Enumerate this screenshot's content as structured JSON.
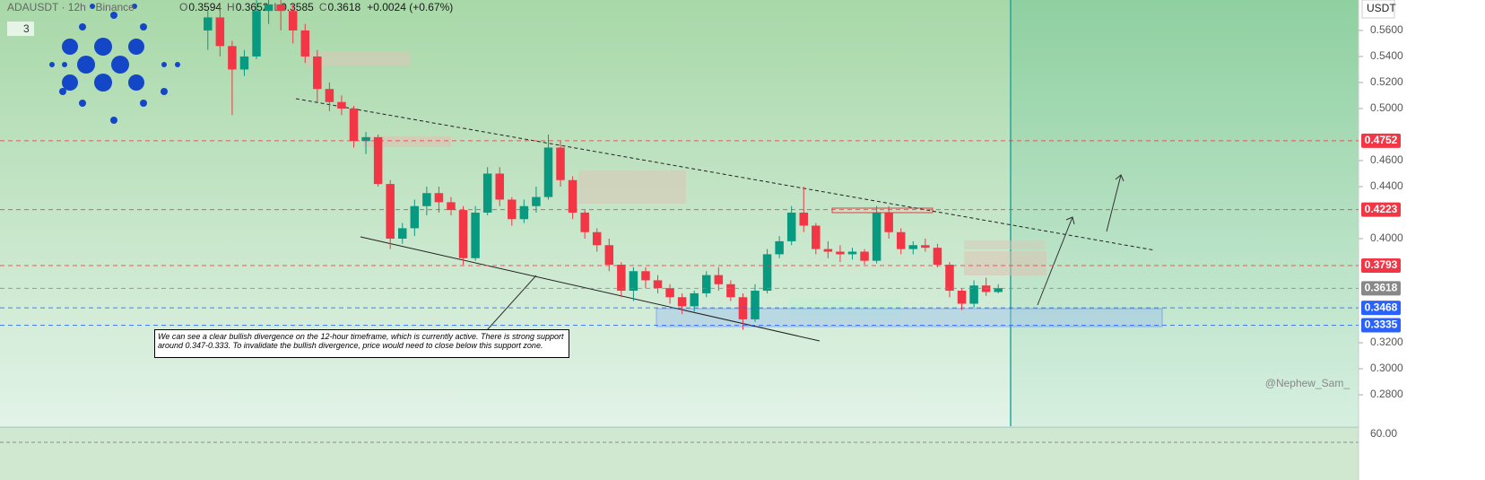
{
  "chart_data": {
    "type": "candlestick",
    "title": "ADAUSDT · 12h · Binance",
    "legend_values": [
      {
        "label": "O",
        "value": "0.3594"
      },
      {
        "label": "H",
        "value": "0.3652"
      },
      {
        "label": "L",
        "value": "0.3585"
      },
      {
        "label": "C",
        "value": "0.3618"
      },
      {
        "label": "",
        "value": "+0.0024 (+0.67%)"
      }
    ],
    "indicator_count": "3",
    "currency": "USDT",
    "annotation": "We can see a clear bullish divergence on the 12-hour timeframe, which is currently active. There is strong support around 0.347-0.333. To invalidate the bullish divergence, price would need to close below this support zone.",
    "watermark": "@Nephew_Sam_",
    "rsi_label": "60.00",
    "up_color": "#089981",
    "down_color": "#f23645",
    "ylim": [
      0.2559,
      0.5834
    ],
    "yticks": [
      {
        "value": 0.56,
        "label": "0.5600"
      },
      {
        "value": 0.54,
        "label": "0.5400"
      },
      {
        "value": 0.52,
        "label": "0.5200"
      },
      {
        "value": 0.5,
        "label": "0.5000"
      },
      {
        "value": 0.46,
        "label": "0.4600"
      },
      {
        "value": 0.44,
        "label": "0.4400"
      },
      {
        "value": 0.4,
        "label": "0.4000"
      },
      {
        "value": 0.32,
        "label": "0.3200"
      },
      {
        "value": 0.3,
        "label": "0.3000"
      },
      {
        "value": 0.28,
        "label": "0.2800"
      }
    ],
    "levels": [
      {
        "value": 0.4752,
        "label": "0.4752",
        "color": "#f23645"
      },
      {
        "value": 0.4223,
        "label": "0.4223",
        "color": "#f23645"
      },
      {
        "value": 0.3793,
        "label": "0.3793",
        "color": "#f23645"
      },
      {
        "value": 0.3618,
        "label": "0.3618",
        "color": "#888888"
      },
      {
        "value": 0.3468,
        "label": "0.3468",
        "color": "#2962ff"
      },
      {
        "value": 0.3335,
        "label": "0.3335",
        "color": "#2962ff"
      }
    ],
    "ohlc": [
      [
        0.56,
        0.575,
        0.545,
        0.57
      ],
      [
        0.57,
        0.58,
        0.54,
        0.548
      ],
      [
        0.548,
        0.552,
        0.495,
        0.53
      ],
      [
        0.53,
        0.545,
        0.525,
        0.54
      ],
      [
        0.54,
        0.585,
        0.538,
        0.575
      ],
      [
        0.575,
        0.59,
        0.565,
        0.58
      ],
      [
        0.58,
        0.588,
        0.56,
        0.575
      ],
      [
        0.575,
        0.58,
        0.55,
        0.56
      ],
      [
        0.56,
        0.565,
        0.535,
        0.54
      ],
      [
        0.54,
        0.545,
        0.505,
        0.515
      ],
      [
        0.515,
        0.52,
        0.498,
        0.505
      ],
      [
        0.505,
        0.51,
        0.495,
        0.5
      ],
      [
        0.5,
        0.502,
        0.47,
        0.475
      ],
      [
        0.475,
        0.482,
        0.465,
        0.478
      ],
      [
        0.478,
        0.48,
        0.44,
        0.442
      ],
      [
        0.442,
        0.445,
        0.392,
        0.4
      ],
      [
        0.4,
        0.412,
        0.396,
        0.408
      ],
      [
        0.408,
        0.43,
        0.402,
        0.425
      ],
      [
        0.425,
        0.44,
        0.418,
        0.435
      ],
      [
        0.435,
        0.44,
        0.42,
        0.428
      ],
      [
        0.428,
        0.432,
        0.418,
        0.422
      ],
      [
        0.422,
        0.425,
        0.38,
        0.385
      ],
      [
        0.385,
        0.425,
        0.383,
        0.42
      ],
      [
        0.42,
        0.455,
        0.418,
        0.45
      ],
      [
        0.45,
        0.455,
        0.425,
        0.43
      ],
      [
        0.43,
        0.432,
        0.41,
        0.415
      ],
      [
        0.415,
        0.43,
        0.412,
        0.425
      ],
      [
        0.425,
        0.44,
        0.42,
        0.432
      ],
      [
        0.432,
        0.48,
        0.43,
        0.47
      ],
      [
        0.47,
        0.475,
        0.44,
        0.445
      ],
      [
        0.445,
        0.448,
        0.415,
        0.42
      ],
      [
        0.42,
        0.422,
        0.4,
        0.405
      ],
      [
        0.405,
        0.408,
        0.39,
        0.395
      ],
      [
        0.395,
        0.4,
        0.375,
        0.38
      ],
      [
        0.38,
        0.382,
        0.355,
        0.36
      ],
      [
        0.36,
        0.378,
        0.352,
        0.375
      ],
      [
        0.375,
        0.378,
        0.362,
        0.368
      ],
      [
        0.368,
        0.372,
        0.358,
        0.362
      ],
      [
        0.362,
        0.365,
        0.35,
        0.355
      ],
      [
        0.355,
        0.358,
        0.342,
        0.348
      ],
      [
        0.348,
        0.36,
        0.344,
        0.358
      ],
      [
        0.358,
        0.375,
        0.355,
        0.372
      ],
      [
        0.372,
        0.378,
        0.36,
        0.365
      ],
      [
        0.365,
        0.368,
        0.352,
        0.355
      ],
      [
        0.355,
        0.358,
        0.33,
        0.338
      ],
      [
        0.338,
        0.365,
        0.336,
        0.36
      ],
      [
        0.36,
        0.392,
        0.358,
        0.388
      ],
      [
        0.388,
        0.402,
        0.385,
        0.398
      ],
      [
        0.398,
        0.425,
        0.395,
        0.42
      ],
      [
        0.42,
        0.44,
        0.405,
        0.41
      ],
      [
        0.41,
        0.412,
        0.388,
        0.392
      ],
      [
        0.392,
        0.398,
        0.385,
        0.39
      ],
      [
        0.39,
        0.395,
        0.382,
        0.388
      ],
      [
        0.388,
        0.393,
        0.384,
        0.39
      ],
      [
        0.39,
        0.392,
        0.38,
        0.383
      ],
      [
        0.383,
        0.425,
        0.381,
        0.42
      ],
      [
        0.42,
        0.425,
        0.4,
        0.405
      ],
      [
        0.405,
        0.408,
        0.388,
        0.392
      ],
      [
        0.392,
        0.398,
        0.388,
        0.395
      ],
      [
        0.395,
        0.4,
        0.39,
        0.393
      ],
      [
        0.393,
        0.396,
        0.378,
        0.38
      ],
      [
        0.38,
        0.382,
        0.355,
        0.36
      ],
      [
        0.36,
        0.362,
        0.345,
        0.35
      ],
      [
        0.35,
        0.368,
        0.347,
        0.364
      ],
      [
        0.364,
        0.37,
        0.356,
        0.359
      ],
      [
        0.359,
        0.365,
        0.358,
        0.362
      ]
    ]
  }
}
